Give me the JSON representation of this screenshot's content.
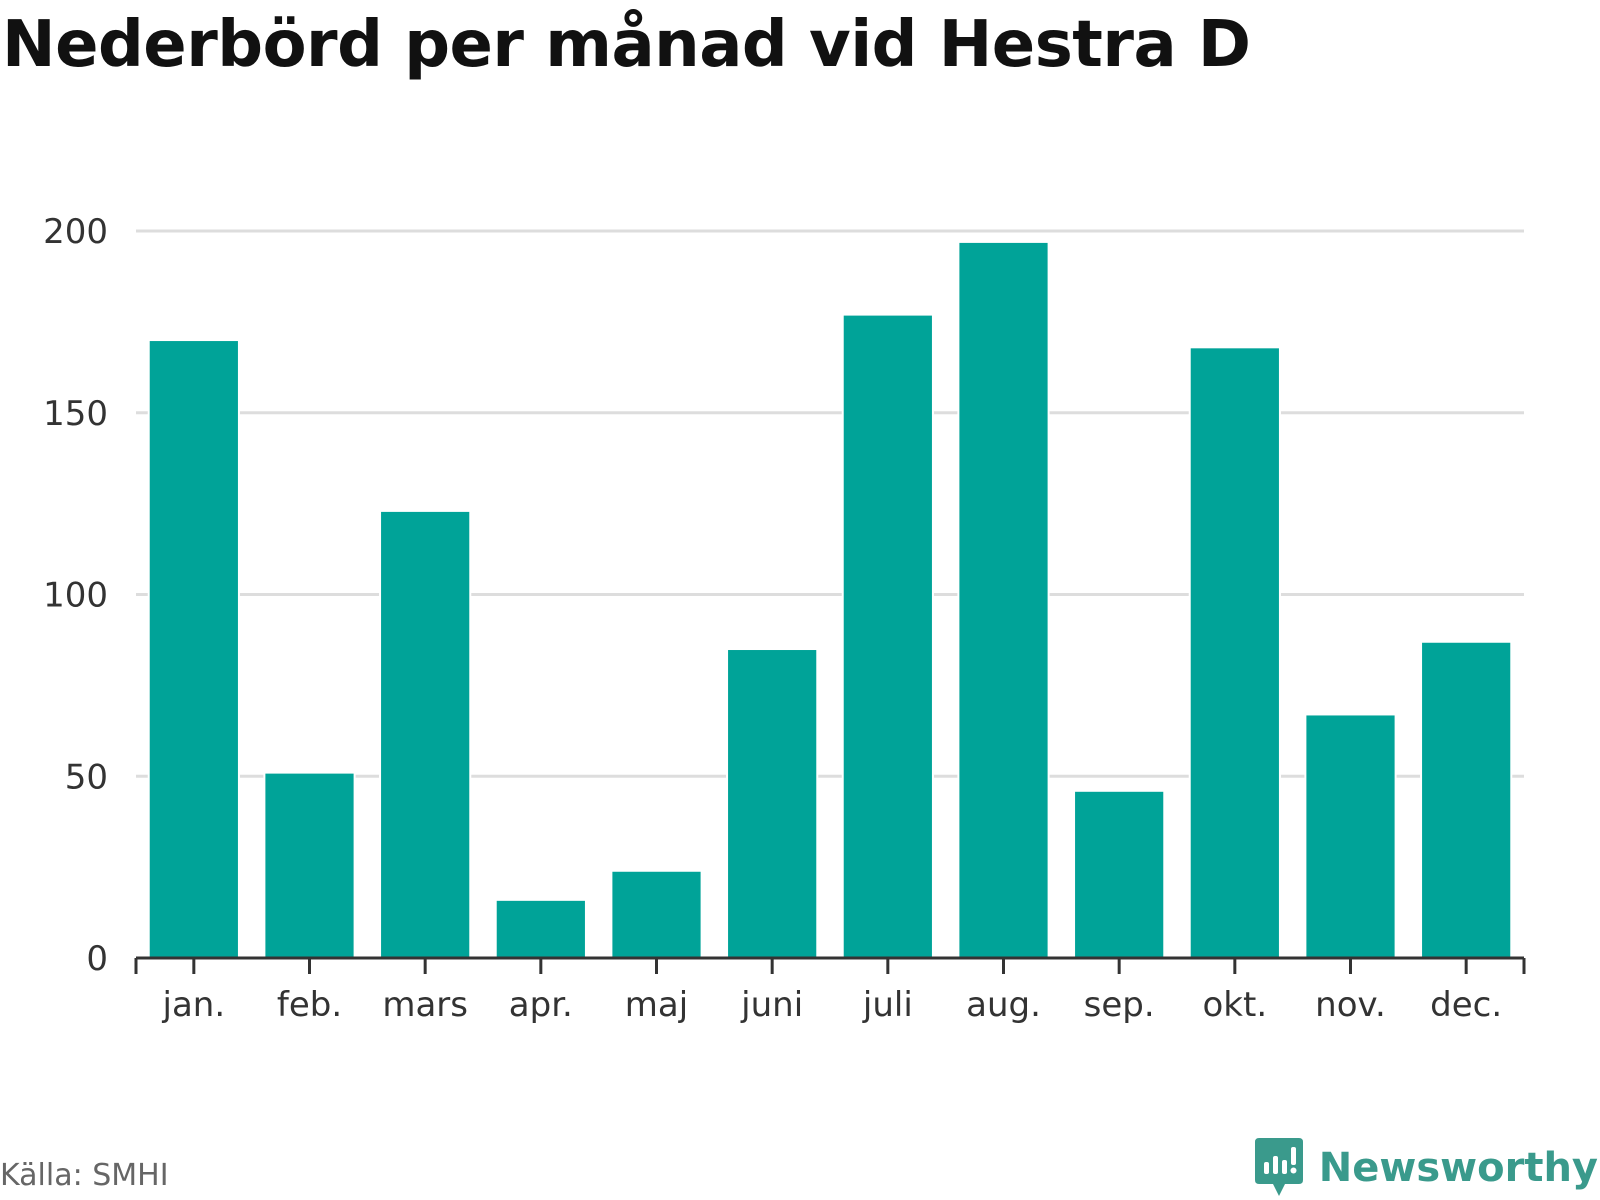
{
  "title": "Nederbörd per månad vid Hestra D",
  "source": "Källa: SMHI",
  "brand": {
    "name": "Newsworthy",
    "logo_icon": "newsworthy-logo-icon",
    "color": "#3a9a8c"
  },
  "colors": {
    "bar": "#00a398",
    "grid": "#dddddd",
    "axis": "#333333",
    "text": "#333333"
  },
  "chart_data": {
    "type": "bar",
    "categories": [
      "jan.",
      "feb.",
      "mars",
      "apr.",
      "maj",
      "juni",
      "juli",
      "aug.",
      "sep.",
      "okt.",
      "nov.",
      "dec."
    ],
    "values": [
      170,
      51,
      123,
      16,
      24,
      85,
      177,
      197,
      46,
      168,
      67,
      87
    ],
    "title": "Nederbörd per månad vid Hestra D",
    "xlabel": "",
    "ylabel": "",
    "ylim": [
      0,
      200
    ],
    "yticks": [
      0,
      50,
      100,
      150,
      200
    ],
    "grid": true,
    "legend": "none"
  }
}
